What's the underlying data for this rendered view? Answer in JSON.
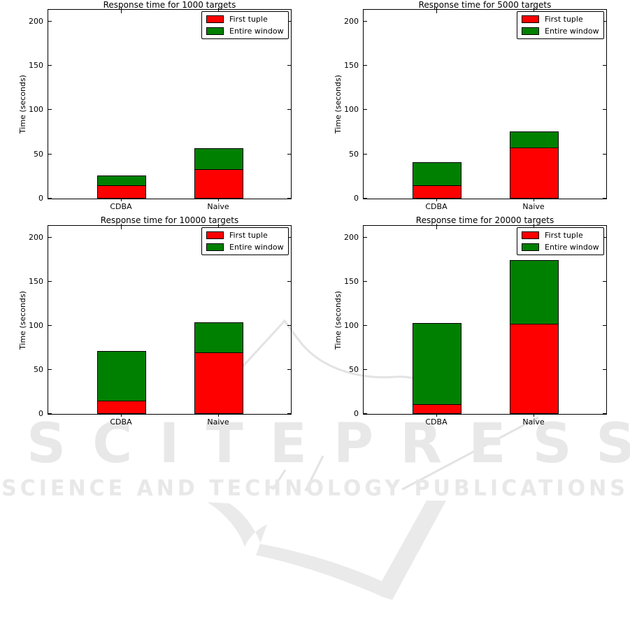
{
  "watermark": {
    "logo_text": "SCITEPRESS",
    "subtitle": "SCIENCE AND TECHNOLOGY PUBLICATIONS",
    "color": "#e8e8e8"
  },
  "colors": {
    "first_tuple": "#ff0000",
    "entire_window": "#008000",
    "axis": "#000000"
  },
  "chart_data": [
    {
      "type": "bar",
      "stacked": true,
      "title": "Response time for 1000 targets",
      "ylabel": "Time (seconds)",
      "categories": [
        "CDBA",
        "Naive"
      ],
      "series": [
        {
          "name": "First tuple",
          "color": "#ff0000",
          "values": [
            15,
            33
          ]
        },
        {
          "name": "Entire window",
          "color": "#008000",
          "values": [
            11,
            24
          ]
        }
      ],
      "stacked_totals": [
        26,
        57
      ],
      "yticks": [
        0,
        50,
        100,
        150,
        200
      ],
      "ylim": [
        0,
        215
      ],
      "legend_position": "upper right"
    },
    {
      "type": "bar",
      "stacked": true,
      "title": "Response time for 5000 targets",
      "ylabel": "Time (seconds)",
      "categories": [
        "CDBA",
        "Naive"
      ],
      "series": [
        {
          "name": "First tuple",
          "color": "#ff0000",
          "values": [
            15,
            58
          ]
        },
        {
          "name": "Entire window",
          "color": "#008000",
          "values": [
            26,
            18
          ]
        }
      ],
      "stacked_totals": [
        41,
        76
      ],
      "yticks": [
        0,
        50,
        100,
        150,
        200
      ],
      "ylim": [
        0,
        215
      ],
      "legend_position": "upper right"
    },
    {
      "type": "bar",
      "stacked": true,
      "title": "Response time for 10000 targets",
      "ylabel": "Time (seconds)",
      "categories": [
        "CDBA",
        "Naive"
      ],
      "series": [
        {
          "name": "First tuple",
          "color": "#ff0000",
          "values": [
            15,
            70
          ]
        },
        {
          "name": "Entire window",
          "color": "#008000",
          "values": [
            56,
            34
          ]
        }
      ],
      "stacked_totals": [
        71,
        104
      ],
      "yticks": [
        0,
        50,
        100,
        150,
        200
      ],
      "ylim": [
        0,
        215
      ],
      "legend_position": "upper right"
    },
    {
      "type": "bar",
      "stacked": true,
      "title": "Response time for 20000 targets",
      "ylabel": "Time (seconds)",
      "categories": [
        "CDBA",
        "Naive"
      ],
      "series": [
        {
          "name": "First tuple",
          "color": "#ff0000",
          "values": [
            11,
            102
          ]
        },
        {
          "name": "Entire window",
          "color": "#008000",
          "values": [
            92,
            72
          ]
        }
      ],
      "stacked_totals": [
        103,
        174
      ],
      "yticks": [
        0,
        50,
        100,
        150,
        200
      ],
      "ylim": [
        0,
        215
      ],
      "legend_position": "upper right"
    }
  ]
}
